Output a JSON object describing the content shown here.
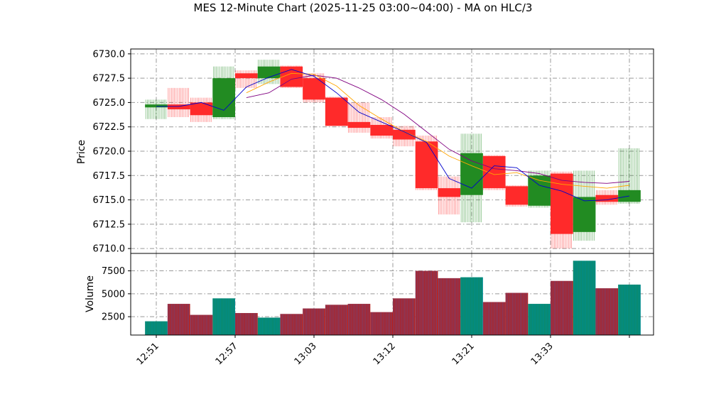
{
  "chart_data": {
    "type": "candlestick",
    "title": "MES 12-Minute Chart (2025-11-25 03:00~04:00) - MA on HLC/3",
    "price_panel": {
      "ylabel": "Price",
      "ylim": [
        6709.5,
        6730.5
      ],
      "yticks": [
        "6710.0",
        "6712.5",
        "6715.0",
        "6717.5",
        "6720.0",
        "6722.5",
        "6725.0",
        "6727.5",
        "6730.0"
      ],
      "grid": true
    },
    "volume_panel": {
      "ylabel": "Volume",
      "ylim": [
        500,
        9400
      ],
      "yticks": [
        "2500",
        "5000",
        "7500"
      ],
      "grid": true
    },
    "xticks": [
      "12:51",
      "12:57",
      "13:03",
      "13:12",
      "13:21",
      "13:33",
      ""
    ],
    "colors": {
      "up": "#228B22",
      "down": "#FF2A2A",
      "ma_fast": "#0000CC",
      "ma_mid": "#FFA500",
      "ma_slow": "#800080",
      "volume_up": "#008B8B",
      "volume_down": "#B22222",
      "grid": "#999999"
    },
    "candles": [
      {
        "open": 6724.5,
        "high": 6725.3,
        "low": 6723.3,
        "close": 6724.8,
        "volume": 2000
      },
      {
        "open": 6724.8,
        "high": 6726.5,
        "low": 6723.5,
        "close": 6724.3,
        "volume": 3900
      },
      {
        "open": 6725.0,
        "high": 6725.5,
        "low": 6723.0,
        "close": 6723.7,
        "volume": 2700
      },
      {
        "open": 6723.5,
        "high": 6728.7,
        "low": 6723.3,
        "close": 6727.5,
        "volume": 4500
      },
      {
        "open": 6728.0,
        "high": 6728.3,
        "low": 6726.5,
        "close": 6727.5,
        "volume": 2900
      },
      {
        "open": 6727.5,
        "high": 6729.4,
        "low": 6726.9,
        "close": 6728.7,
        "volume": 2400
      },
      {
        "open": 6728.7,
        "high": 6728.8,
        "low": 6726.5,
        "close": 6726.6,
        "volume": 2800
      },
      {
        "open": 6727.5,
        "high": 6728.0,
        "low": 6725.0,
        "close": 6725.3,
        "volume": 3400
      },
      {
        "open": 6725.5,
        "high": 6725.6,
        "low": 6722.6,
        "close": 6722.6,
        "volume": 3800
      },
      {
        "open": 6723.0,
        "high": 6725.0,
        "low": 6721.9,
        "close": 6722.4,
        "volume": 3900
      },
      {
        "open": 6722.7,
        "high": 6723.5,
        "low": 6721.3,
        "close": 6721.6,
        "volume": 3000
      },
      {
        "open": 6722.2,
        "high": 6722.6,
        "low": 6720.5,
        "close": 6721.2,
        "volume": 4500
      },
      {
        "open": 6721.0,
        "high": 6721.6,
        "low": 6716.0,
        "close": 6716.2,
        "volume": 7500
      },
      {
        "open": 6716.2,
        "high": 6717.4,
        "low": 6713.5,
        "close": 6715.3,
        "volume": 6700
      },
      {
        "open": 6715.5,
        "high": 6721.8,
        "low": 6712.7,
        "close": 6719.8,
        "volume": 6800
      },
      {
        "open": 6719.5,
        "high": 6719.6,
        "low": 6716.0,
        "close": 6716.2,
        "volume": 4100
      },
      {
        "open": 6716.4,
        "high": 6716.5,
        "low": 6714.3,
        "close": 6714.5,
        "volume": 5100
      },
      {
        "open": 6714.4,
        "high": 6718.0,
        "low": 6714.2,
        "close": 6717.5,
        "volume": 3900
      },
      {
        "open": 6717.7,
        "high": 6717.9,
        "low": 6710.0,
        "close": 6711.5,
        "volume": 6400
      },
      {
        "open": 6711.7,
        "high": 6718.0,
        "low": 6710.8,
        "close": 6715.3,
        "volume": 8600
      },
      {
        "open": 6715.5,
        "high": 6716.0,
        "low": 6714.5,
        "close": 6714.8,
        "volume": 5600
      },
      {
        "open": 6714.8,
        "high": 6720.3,
        "low": 6714.6,
        "close": 6716.0,
        "volume": 6000
      }
    ],
    "ma_fast": [
      6724.6,
      6724.6,
      6725.0,
      6724.2,
      6726.6,
      6727.6,
      6728.4,
      6727.7,
      6726.0,
      6724.0,
      6723.0,
      6722.0,
      6720.9,
      6717.2,
      6716.2,
      6718.5,
      6718.3,
      6716.5,
      6715.9,
      6714.9,
      6715.0,
      6715.4
    ],
    "ma_mid": [
      null,
      null,
      null,
      null,
      6726.0,
      6727.1,
      6728.0,
      6727.9,
      6726.7,
      6724.7,
      6723.3,
      6722.0,
      6721.0,
      6719.5,
      6718.5,
      6717.6,
      6717.8,
      6717.0,
      6716.6,
      6716.4,
      6716.2,
      6716.5
    ],
    "ma_slow": [
      null,
      null,
      null,
      null,
      6725.5,
      6726.0,
      6727.4,
      6727.8,
      6727.5,
      6726.5,
      6725.3,
      6723.8,
      6722.0,
      6720.2,
      6719.0,
      6718.2,
      6718.0,
      6717.7,
      6717.0,
      6716.8,
      6716.7,
      6716.9
    ]
  }
}
